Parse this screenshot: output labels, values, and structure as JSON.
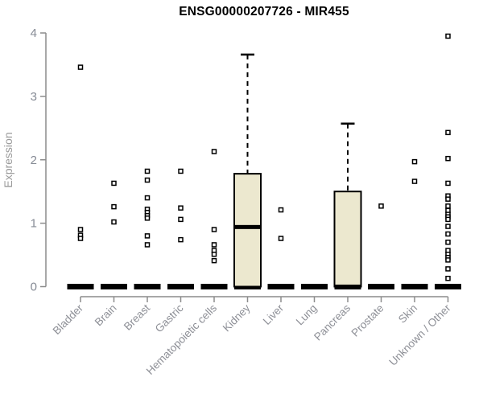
{
  "title": "ENSG00000207726 - MIR455",
  "y_axis": {
    "label": "Expression",
    "ticks": [
      0,
      1,
      2,
      3,
      4
    ],
    "min": 0,
    "max": 4
  },
  "colors": {
    "box_fill": "#ece8cf",
    "box_border": "#000000",
    "median": "#000000",
    "outlier": "#000000",
    "axis": "#8c8c8c",
    "tick_label": "#868b95",
    "category_label": "#8d8f96",
    "title": "#000000",
    "background": "#ffffff"
  },
  "chart_data": {
    "type": "boxplot",
    "title": "ENSG00000207726 - MIR455",
    "xlabel": "",
    "ylabel": "Expression",
    "ylim": [
      0,
      4
    ],
    "yticks": [
      0,
      1,
      2,
      3,
      4
    ],
    "grid": false,
    "legend": false,
    "categories": [
      "Bladder",
      "Brain",
      "Breast",
      "Gastric",
      "Hematopoietic cells",
      "Kidney",
      "Liver",
      "Lung",
      "Pancreas",
      "Prostate",
      "Skin",
      "Unknown / Other"
    ],
    "boxes": [
      {
        "category": "Bladder",
        "q1": 0,
        "median": 0,
        "q3": 0,
        "whisker_low": 0,
        "whisker_high": 0,
        "outliers": [
          3.46,
          0.9,
          0.81,
          0.76
        ]
      },
      {
        "category": "Brain",
        "q1": 0,
        "median": 0,
        "q3": 0,
        "whisker_low": 0,
        "whisker_high": 0,
        "outliers": [
          1.63,
          1.26,
          1.02
        ]
      },
      {
        "category": "Breast",
        "q1": 0,
        "median": 0,
        "q3": 0,
        "whisker_low": 0,
        "whisker_high": 0,
        "outliers": [
          1.82,
          1.68,
          1.4,
          1.22,
          1.17,
          1.12,
          1.08,
          0.8,
          0.66
        ]
      },
      {
        "category": "Gastric",
        "q1": 0,
        "median": 0,
        "q3": 0,
        "whisker_low": 0,
        "whisker_high": 0,
        "outliers": [
          1.82,
          1.24,
          1.06,
          0.74
        ]
      },
      {
        "category": "Hematopoietic cells",
        "q1": 0,
        "median": 0,
        "q3": 0,
        "whisker_low": 0,
        "whisker_high": 0,
        "outliers": [
          2.13,
          0.9,
          0.66,
          0.57,
          0.51,
          0.41
        ]
      },
      {
        "category": "Kidney",
        "q1": 0,
        "median": 0.94,
        "q3": 1.78,
        "whisker_low": 0,
        "whisker_high": 3.66,
        "outliers": []
      },
      {
        "category": "Liver",
        "q1": 0,
        "median": 0,
        "q3": 0,
        "whisker_low": 0,
        "whisker_high": 0,
        "outliers": [
          1.21,
          0.76
        ]
      },
      {
        "category": "Lung",
        "q1": 0,
        "median": 0,
        "q3": 0,
        "whisker_low": 0,
        "whisker_high": 0,
        "outliers": []
      },
      {
        "category": "Pancreas",
        "q1": 0,
        "median": 0,
        "q3": 1.5,
        "whisker_low": 0,
        "whisker_high": 2.57,
        "outliers": []
      },
      {
        "category": "Prostate",
        "q1": 0,
        "median": 0,
        "q3": 0,
        "whisker_low": 0,
        "whisker_high": 0,
        "outliers": [
          1.27
        ]
      },
      {
        "category": "Skin",
        "q1": 0,
        "median": 0,
        "q3": 0,
        "whisker_low": 0,
        "whisker_high": 0,
        "outliers": [
          1.97,
          1.66
        ]
      },
      {
        "category": "Unknown / Other",
        "q1": 0,
        "median": 0,
        "q3": 0,
        "whisker_low": 0,
        "whisker_high": 0,
        "outliers": [
          3.95,
          2.43,
          2.02,
          1.63,
          1.43,
          1.38,
          1.27,
          1.2,
          1.14,
          1.1,
          1.06,
          0.95,
          0.83,
          0.7,
          0.57,
          0.51,
          0.46,
          0.42,
          0.28,
          0.13
        ]
      }
    ]
  }
}
